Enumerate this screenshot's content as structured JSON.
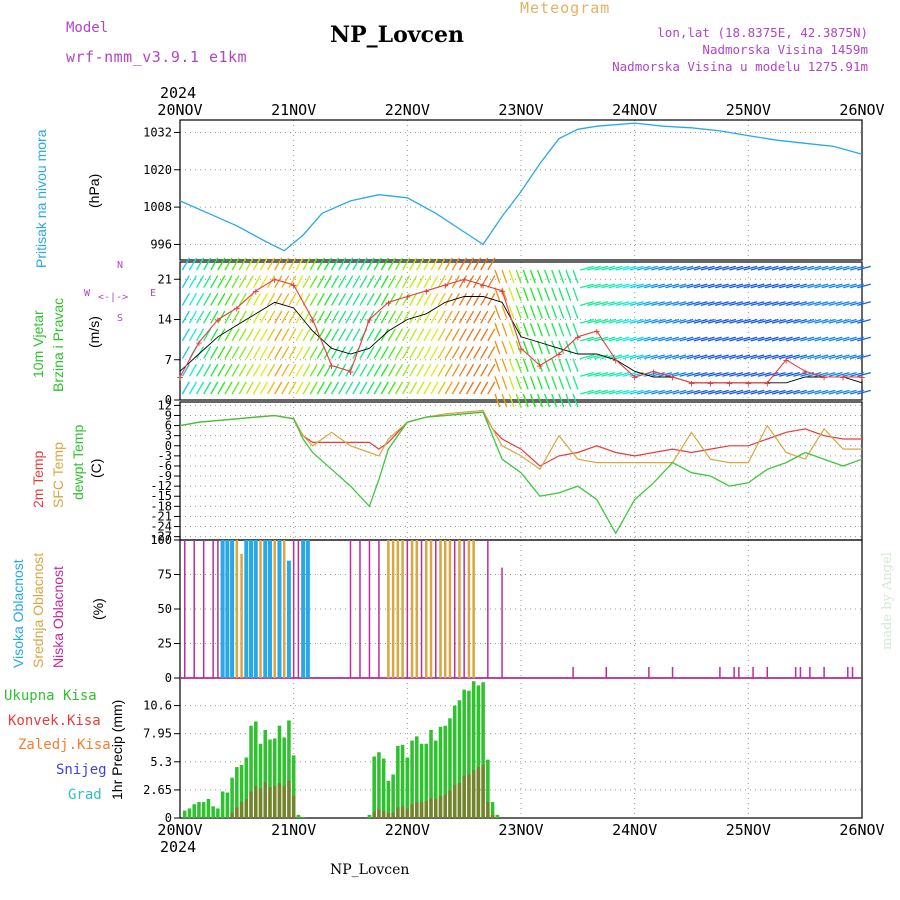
{
  "header": {
    "model_label": "Model",
    "model_name": "wrf-nmm_v3.9.1 e1km",
    "station": "NP_Lovcen",
    "meteogram": "Meteogram",
    "lonlat": "lon,lat (18.8375E, 42.3875N)",
    "altitude": "Nadmorska Visina 1459m",
    "model_altitude": "Nadmorska Visina u modelu 1275.91m"
  },
  "footer": {
    "station": "NP_Lovcen",
    "made_by": "made by Angel"
  },
  "time_axis": {
    "year": "2024",
    "ticks": [
      "20NOV",
      "21NOV",
      "22NOV",
      "23NOV",
      "24NOV",
      "25NOV",
      "26NOV"
    ],
    "hours_total": 144
  },
  "panel_labels": {
    "pressure": {
      "name": "Pritisak na nivou mora",
      "unit": "(hPa)"
    },
    "wind": {
      "name1": "10m Vjetar",
      "name2": "Brzina i Pravac",
      "unit": "(m/s)",
      "compass_w": "W",
      "compass_e": "E",
      "compass_n": "N",
      "compass_s": "S"
    },
    "temp": {
      "t2m": "2m Temp",
      "sfc": "SFC Temp",
      "dewpt": "dewpt Temp",
      "unit": "(C)"
    },
    "cloud": {
      "high": "Visoka Oblacnost",
      "mid": "Srednja Oblacnost",
      "low": "Niska Oblacnost",
      "unit": "(%)"
    },
    "precip": {
      "total": "Ukupna Kisa",
      "conv": "Konvek.Kisa",
      "frozen": "Zaledj.Kisa",
      "snow": "Snijeg",
      "hail": "Grad",
      "unit": "1hr Precip (mm)"
    }
  },
  "colors": {
    "pressure": "#29a8e8",
    "t2m": "#e83c3c",
    "sfc": "#d9a641",
    "dewpt": "#3cc83c",
    "high_cloud": "#29a8e8",
    "mid_cloud": "#d9a641",
    "low_cloud": "#c02a9c",
    "total_precip": "#2ec22e",
    "conv_precip": "#e83c3c",
    "frozen": "#f08030",
    "snow": "#4040e0",
    "hail": "#30c0c0",
    "wind_line": "#000000",
    "wind_gust": "#e83c3c"
  },
  "chart_data": [
    {
      "type": "line",
      "title": "Pritisak na nivou mora",
      "ylabel": "(hPa)",
      "ylim": [
        991,
        1036
      ],
      "yticks": [
        996,
        1008,
        1020,
        1032
      ],
      "x_hours": [
        0,
        6,
        12,
        18,
        22,
        26,
        30,
        36,
        42,
        48,
        54,
        60,
        64,
        68,
        72,
        76,
        80,
        84,
        88,
        92,
        96,
        102,
        108,
        114,
        120,
        126,
        132,
        138,
        144
      ],
      "series": [
        {
          "values": [
            1010,
            1006,
            1002,
            997,
            994,
            999,
            1006,
            1010,
            1012,
            1011,
            1006,
            1000,
            996,
            1005,
            1013,
            1022,
            1030,
            1033,
            1034,
            1034.5,
            1035,
            1034,
            1033.5,
            1032.5,
            1031,
            1029.5,
            1028.5,
            1027.5,
            1025
          ]
        }
      ]
    },
    {
      "type": "line",
      "title": "10m Vjetar Brzina i Pravac",
      "ylabel": "(m/s)",
      "ylim": [
        0,
        24
      ],
      "yticks": [
        0,
        7,
        14,
        21
      ],
      "x_hours": [
        0,
        4,
        8,
        12,
        16,
        20,
        24,
        28,
        32,
        36,
        40,
        44,
        48,
        52,
        56,
        60,
        64,
        68,
        72,
        76,
        80,
        84,
        88,
        92,
        96,
        100,
        104,
        108,
        112,
        116,
        120,
        124,
        128,
        132,
        136,
        140,
        144
      ],
      "series": [
        {
          "name": "speed",
          "values": [
            5,
            8,
            11,
            13,
            15,
            17,
            16,
            12,
            9,
            8,
            9,
            12,
            14,
            15,
            17,
            18,
            18,
            17,
            11,
            10,
            9,
            8,
            8,
            7,
            5,
            4,
            4,
            3,
            3,
            3,
            3,
            3,
            3,
            4,
            4,
            4,
            3
          ]
        },
        {
          "name": "gust",
          "values": [
            4,
            10,
            14,
            16,
            19,
            21,
            20,
            14,
            6,
            5,
            14,
            17,
            18,
            19,
            20,
            21,
            20,
            19,
            9,
            6,
            8,
            11,
            12,
            7,
            4,
            5,
            4,
            3,
            3,
            3,
            3,
            3,
            7,
            5,
            4,
            4,
            4
          ]
        }
      ]
    },
    {
      "type": "line",
      "title": "Temp",
      "ylabel": "(C)",
      "ylim": [
        -28,
        13
      ],
      "yticks": [
        12,
        9,
        6,
        3,
        0,
        -3,
        -6,
        -9,
        -12,
        -15,
        -18,
        -21,
        -24,
        -27
      ],
      "x_hours": [
        0,
        4,
        8,
        12,
        16,
        20,
        24,
        26,
        28,
        32,
        36,
        40,
        42,
        44,
        48,
        52,
        56,
        60,
        64,
        66,
        68,
        72,
        76,
        80,
        84,
        88,
        92,
        96,
        100,
        104,
        108,
        112,
        116,
        120,
        124,
        128,
        132,
        136,
        140,
        144
      ],
      "series": [
        {
          "name": "2m Temp",
          "values": [
            6,
            7,
            7.5,
            8,
            8.5,
            9,
            8,
            3,
            1,
            1,
            1,
            1,
            -1,
            1,
            7,
            8.5,
            9,
            9.5,
            10,
            5,
            2,
            -1,
            -6,
            -3,
            -2,
            0,
            -2,
            -3,
            -2,
            -1,
            -2,
            -1,
            0,
            0,
            2,
            4,
            5,
            3,
            2,
            2
          ]
        },
        {
          "name": "SFC Temp",
          "values": [
            6,
            7,
            7.5,
            8,
            8.5,
            9,
            8,
            3,
            0,
            4,
            0,
            -2,
            -3,
            2,
            7,
            8.5,
            9.5,
            10,
            10.5,
            5,
            0,
            -3,
            -7,
            3,
            -4,
            -5,
            -5,
            -5,
            -5,
            -5,
            4,
            -4,
            -5,
            -5,
            6,
            -2,
            -4,
            5,
            -1,
            -1
          ]
        },
        {
          "name": "dewpt Temp",
          "values": [
            6,
            7,
            7.5,
            8,
            8.5,
            9,
            8,
            2,
            -2,
            -7,
            -12,
            -18,
            -10,
            -1,
            7,
            8.5,
            9,
            9.5,
            10,
            3,
            -4,
            -8,
            -15,
            -14,
            -12,
            -16,
            -26,
            -16,
            -11,
            -5,
            -8,
            -9,
            -12,
            -11,
            -7,
            -5,
            -2,
            -4,
            -6,
            -4
          ]
        }
      ]
    },
    {
      "type": "bar",
      "title": "Oblacnost",
      "ylabel": "(%)",
      "ylim": [
        0,
        100
      ],
      "yticks": [
        0,
        25,
        50,
        75,
        100
      ],
      "series": [
        {
          "name": "Niska Oblacnost",
          "hours": [
            1,
            3,
            5,
            7,
            8,
            18,
            24,
            25,
            36,
            38,
            40,
            42,
            48,
            51,
            54,
            58,
            60,
            65,
            68,
            83,
            90,
            99,
            104,
            114,
            117,
            118,
            121,
            124,
            130,
            131,
            133,
            136,
            141,
            142
          ],
          "values": [
            100,
            100,
            100,
            100,
            100,
            100,
            100,
            100,
            100,
            100,
            100,
            100,
            100,
            100,
            100,
            100,
            100,
            100,
            80,
            8,
            8,
            8,
            8,
            8,
            8,
            8,
            8,
            8,
            8,
            8,
            8,
            8,
            8,
            8
          ]
        },
        {
          "name": "Srednja Oblacnost",
          "hours": [
            10,
            11,
            12,
            13,
            14,
            15,
            16,
            17,
            19,
            20,
            21,
            22,
            44,
            45,
            46,
            47,
            49,
            50,
            52,
            53,
            55,
            56,
            57,
            59,
            61,
            62
          ],
          "values": [
            75,
            75,
            100,
            90,
            95,
            100,
            100,
            100,
            100,
            100,
            100,
            100,
            100,
            100,
            100,
            100,
            100,
            100,
            100,
            100,
            100,
            100,
            100,
            100,
            100,
            100
          ]
        },
        {
          "name": "Visoka Oblacnost",
          "hours": [
            9,
            10,
            11,
            14,
            15,
            16,
            18,
            19,
            21,
            23,
            26,
            27
          ],
          "values": [
            100,
            100,
            100,
            100,
            100,
            100,
            100,
            100,
            100,
            85,
            100,
            100
          ]
        }
      ]
    },
    {
      "type": "bar",
      "title": "1hr Precip",
      "ylabel": "1hr Precip (mm)",
      "ylim": [
        0,
        13.2
      ],
      "yticks": [
        0,
        2.65,
        5.3,
        7.95,
        10.6
      ],
      "hours": [
        1,
        2,
        3,
        4,
        5,
        6,
        7,
        8,
        9,
        10,
        11,
        12,
        13,
        14,
        15,
        16,
        17,
        18,
        19,
        20,
        21,
        22,
        23,
        24,
        25,
        26,
        27,
        40,
        41,
        42,
        43,
        44,
        45,
        46,
        47,
        48,
        49,
        50,
        51,
        52,
        53,
        54,
        55,
        56,
        57,
        58,
        59,
        60,
        61,
        62,
        63,
        64,
        65,
        66,
        67
      ],
      "series": [
        {
          "name": "Ukupna Kisa",
          "values": [
            0.7,
            0.9,
            1.3,
            1.5,
            1.5,
            1.8,
            1.1,
            0.9,
            2.5,
            2.4,
            3.8,
            4.8,
            5.0,
            5.7,
            8.7,
            9.1,
            7.0,
            8.3,
            7.4,
            7.5,
            8.7,
            7.6,
            9.2,
            5.9,
            0.3,
            0.1,
            0.0,
            0.3,
            5.8,
            6.2,
            5.6,
            3.5,
            4.1,
            6.8,
            6.9,
            5.7,
            7.3,
            7.7,
            7.0,
            7.0,
            8.3,
            7.3,
            8.6,
            8.7,
            9.4,
            10.6,
            11.1,
            12.1,
            12.0,
            12.9,
            12.5,
            12.8,
            5.5,
            1.5,
            0.3
          ]
        },
        {
          "name": "Konvek.Kisa",
          "values": [
            0.0,
            0.0,
            0.0,
            0.0,
            0.0,
            0.0,
            0.0,
            0.0,
            0.0,
            0.0,
            0.5,
            1.0,
            1.5,
            1.8,
            2.5,
            3.0,
            2.8,
            3.4,
            2.9,
            3.0,
            3.3,
            3.0,
            3.5,
            2.1,
            0.0,
            0.0,
            0.0,
            0.0,
            0.6,
            0.8,
            0.7,
            0.5,
            0.5,
            1.0,
            1.1,
            0.9,
            1.3,
            1.5,
            1.5,
            1.6,
            1.9,
            1.8,
            2.1,
            2.2,
            2.6,
            3.1,
            3.3,
            4.0,
            4.1,
            4.5,
            4.8,
            5.0,
            1.5,
            0.3,
            0.0
          ]
        }
      ]
    }
  ]
}
